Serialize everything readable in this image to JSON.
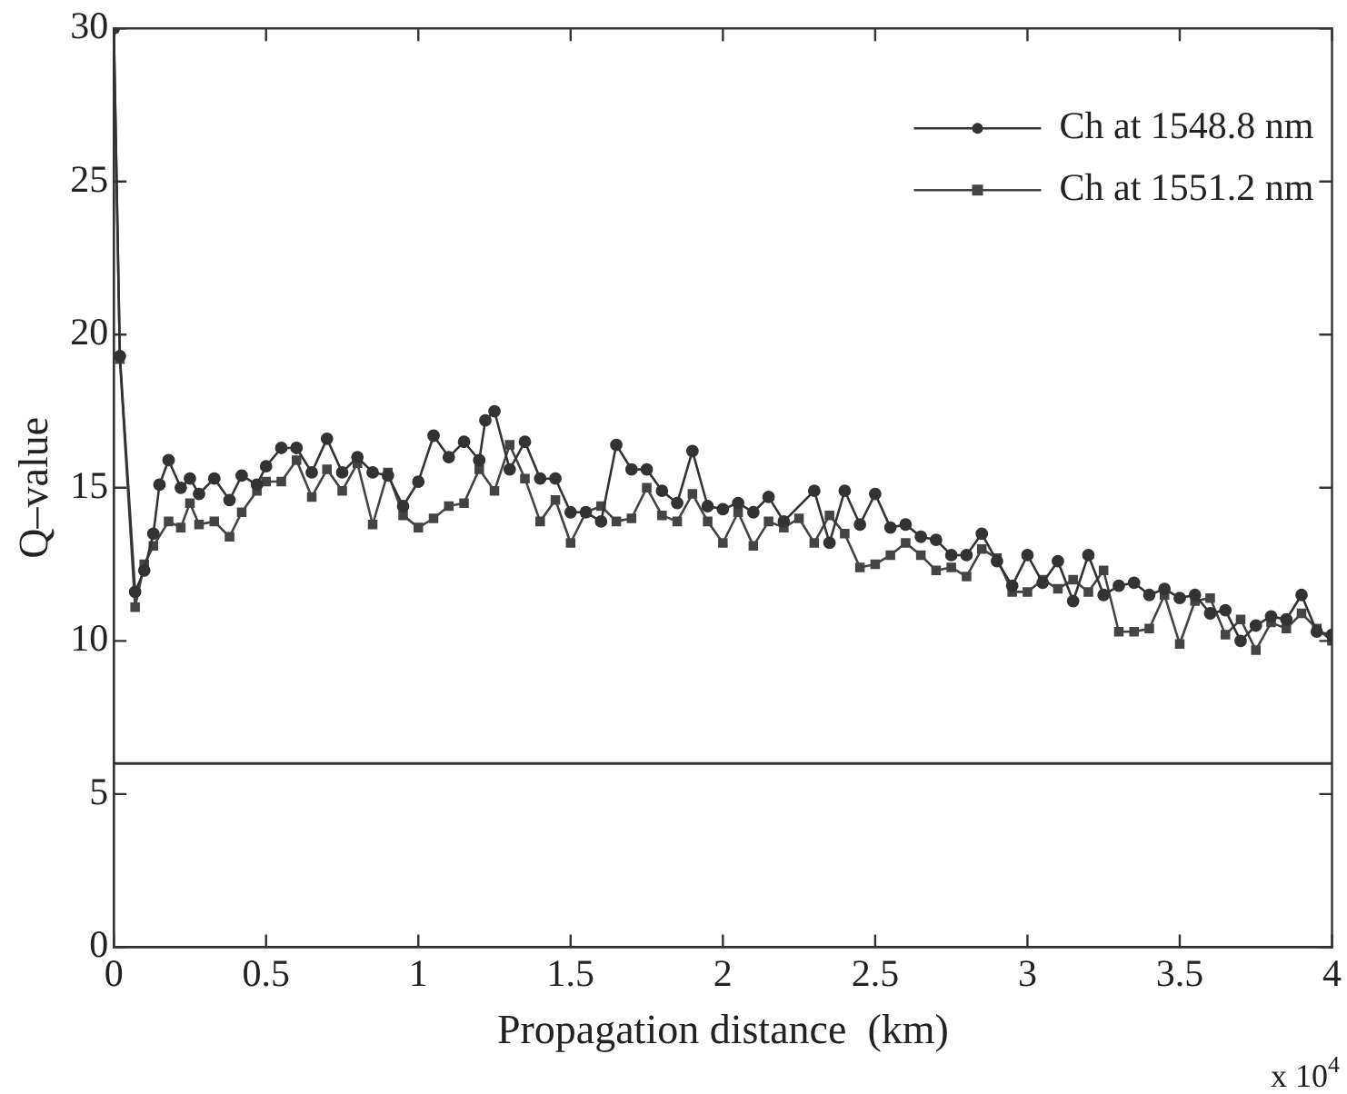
{
  "chart_data": {
    "type": "line",
    "xlabel": "Propagation distance  (km)",
    "ylabel": "Q–value",
    "annotations": [
      "x 10$^{4}$"
    ],
    "xlim": [
      0,
      4
    ],
    "xticks": [
      0,
      0.5,
      1,
      1.5,
      2,
      2.5,
      3,
      3.5,
      4
    ],
    "ylim": [
      0,
      30
    ],
    "yticks": [
      0,
      5,
      10,
      15,
      20,
      25,
      30
    ],
    "grid": false,
    "legend": "top right",
    "line_style": "solid",
    "ref_lines": [
      {
        "axis": "y",
        "value": 6,
        "color": "#333333"
      }
    ],
    "series": [
      {
        "name": "Ch at 1548.8 nm",
        "color": "#333333",
        "marker": "circle",
        "x": [
          0,
          0.02,
          0.07,
          0.1,
          0.13,
          0.15,
          0.18,
          0.22,
          0.25,
          0.28,
          0.33,
          0.38,
          0.42,
          0.47,
          0.5,
          0.55,
          0.6,
          0.65,
          0.7,
          0.75,
          0.8,
          0.85,
          0.9,
          0.95,
          1.0,
          1.05,
          1.1,
          1.15,
          1.2,
          1.22,
          1.25,
          1.3,
          1.35,
          1.4,
          1.45,
          1.5,
          1.55,
          1.6,
          1.65,
          1.7,
          1.75,
          1.8,
          1.85,
          1.9,
          1.95,
          2.0,
          2.05,
          2.1,
          2.15,
          2.2,
          2.3,
          2.35,
          2.4,
          2.45,
          2.5,
          2.55,
          2.6,
          2.65,
          2.7,
          2.75,
          2.8,
          2.85,
          2.9,
          2.95,
          3.0,
          3.05,
          3.1,
          3.15,
          3.2,
          3.25,
          3.3,
          3.35,
          3.4,
          3.45,
          3.5,
          3.55,
          3.6,
          3.65,
          3.7,
          3.75,
          3.8,
          3.85,
          3.9,
          3.95,
          4.0
        ],
        "values": [
          30,
          19.3,
          11.6,
          12.3,
          13.5,
          15.1,
          15.9,
          15.0,
          15.3,
          14.8,
          15.3,
          14.6,
          15.4,
          15.1,
          15.7,
          16.3,
          16.3,
          15.5,
          16.6,
          15.5,
          16.0,
          15.5,
          15.4,
          14.4,
          15.2,
          16.7,
          16.0,
          16.5,
          15.9,
          17.2,
          17.5,
          15.6,
          16.5,
          15.3,
          15.3,
          14.2,
          14.2,
          13.9,
          16.4,
          15.6,
          15.6,
          14.9,
          14.5,
          16.2,
          14.4,
          14.3,
          14.5,
          14.2,
          14.7,
          13.9,
          14.9,
          13.2,
          14.9,
          13.8,
          14.8,
          13.7,
          13.8,
          13.4,
          13.3,
          12.8,
          12.8,
          13.5,
          12.6,
          11.8,
          12.8,
          11.9,
          12.6,
          11.3,
          12.8,
          11.5,
          11.8,
          11.9,
          11.5,
          11.7,
          11.4,
          11.5,
          10.9,
          11.0,
          10.0,
          10.5,
          10.8,
          10.7,
          11.5,
          10.3,
          10.2
        ]
      },
      {
        "name": "Ch at 1551.2 nm",
        "color": "#444444",
        "marker": "square",
        "x": [
          0,
          0.02,
          0.07,
          0.1,
          0.13,
          0.18,
          0.22,
          0.25,
          0.28,
          0.33,
          0.38,
          0.42,
          0.47,
          0.5,
          0.55,
          0.6,
          0.65,
          0.7,
          0.75,
          0.8,
          0.85,
          0.9,
          0.95,
          1.0,
          1.05,
          1.1,
          1.15,
          1.2,
          1.25,
          1.3,
          1.35,
          1.4,
          1.45,
          1.5,
          1.55,
          1.6,
          1.65,
          1.7,
          1.75,
          1.8,
          1.85,
          1.9,
          1.95,
          2.0,
          2.05,
          2.1,
          2.15,
          2.2,
          2.25,
          2.3,
          2.35,
          2.4,
          2.45,
          2.5,
          2.55,
          2.6,
          2.65,
          2.7,
          2.75,
          2.8,
          2.85,
          2.9,
          2.95,
          3.0,
          3.05,
          3.1,
          3.15,
          3.2,
          3.25,
          3.3,
          3.35,
          3.4,
          3.45,
          3.5,
          3.55,
          3.6,
          3.65,
          3.7,
          3.75,
          3.8,
          3.85,
          3.9,
          3.95,
          4.0
        ],
        "values": [
          30,
          19.2,
          11.1,
          12.5,
          13.1,
          13.9,
          13.7,
          14.5,
          13.8,
          13.9,
          13.4,
          14.2,
          14.9,
          15.2,
          15.2,
          15.9,
          14.7,
          15.6,
          14.9,
          15.8,
          13.8,
          15.5,
          14.1,
          13.7,
          14.0,
          14.4,
          14.5,
          15.6,
          14.9,
          16.4,
          15.3,
          13.9,
          14.6,
          13.2,
          14.2,
          14.4,
          13.9,
          14.0,
          15.0,
          14.1,
          13.9,
          14.8,
          13.9,
          13.2,
          14.2,
          13.1,
          13.9,
          13.7,
          14.0,
          13.2,
          14.1,
          13.5,
          12.4,
          12.5,
          12.8,
          13.2,
          12.8,
          12.3,
          12.4,
          12.1,
          13.0,
          12.7,
          11.6,
          11.6,
          12.0,
          11.7,
          12.0,
          11.6,
          12.3,
          10.3,
          10.3,
          10.4,
          11.5,
          9.9,
          11.3,
          11.4,
          10.2,
          10.7,
          9.7,
          10.6,
          10.4,
          10.9,
          10.4,
          10.0
        ]
      }
    ]
  }
}
